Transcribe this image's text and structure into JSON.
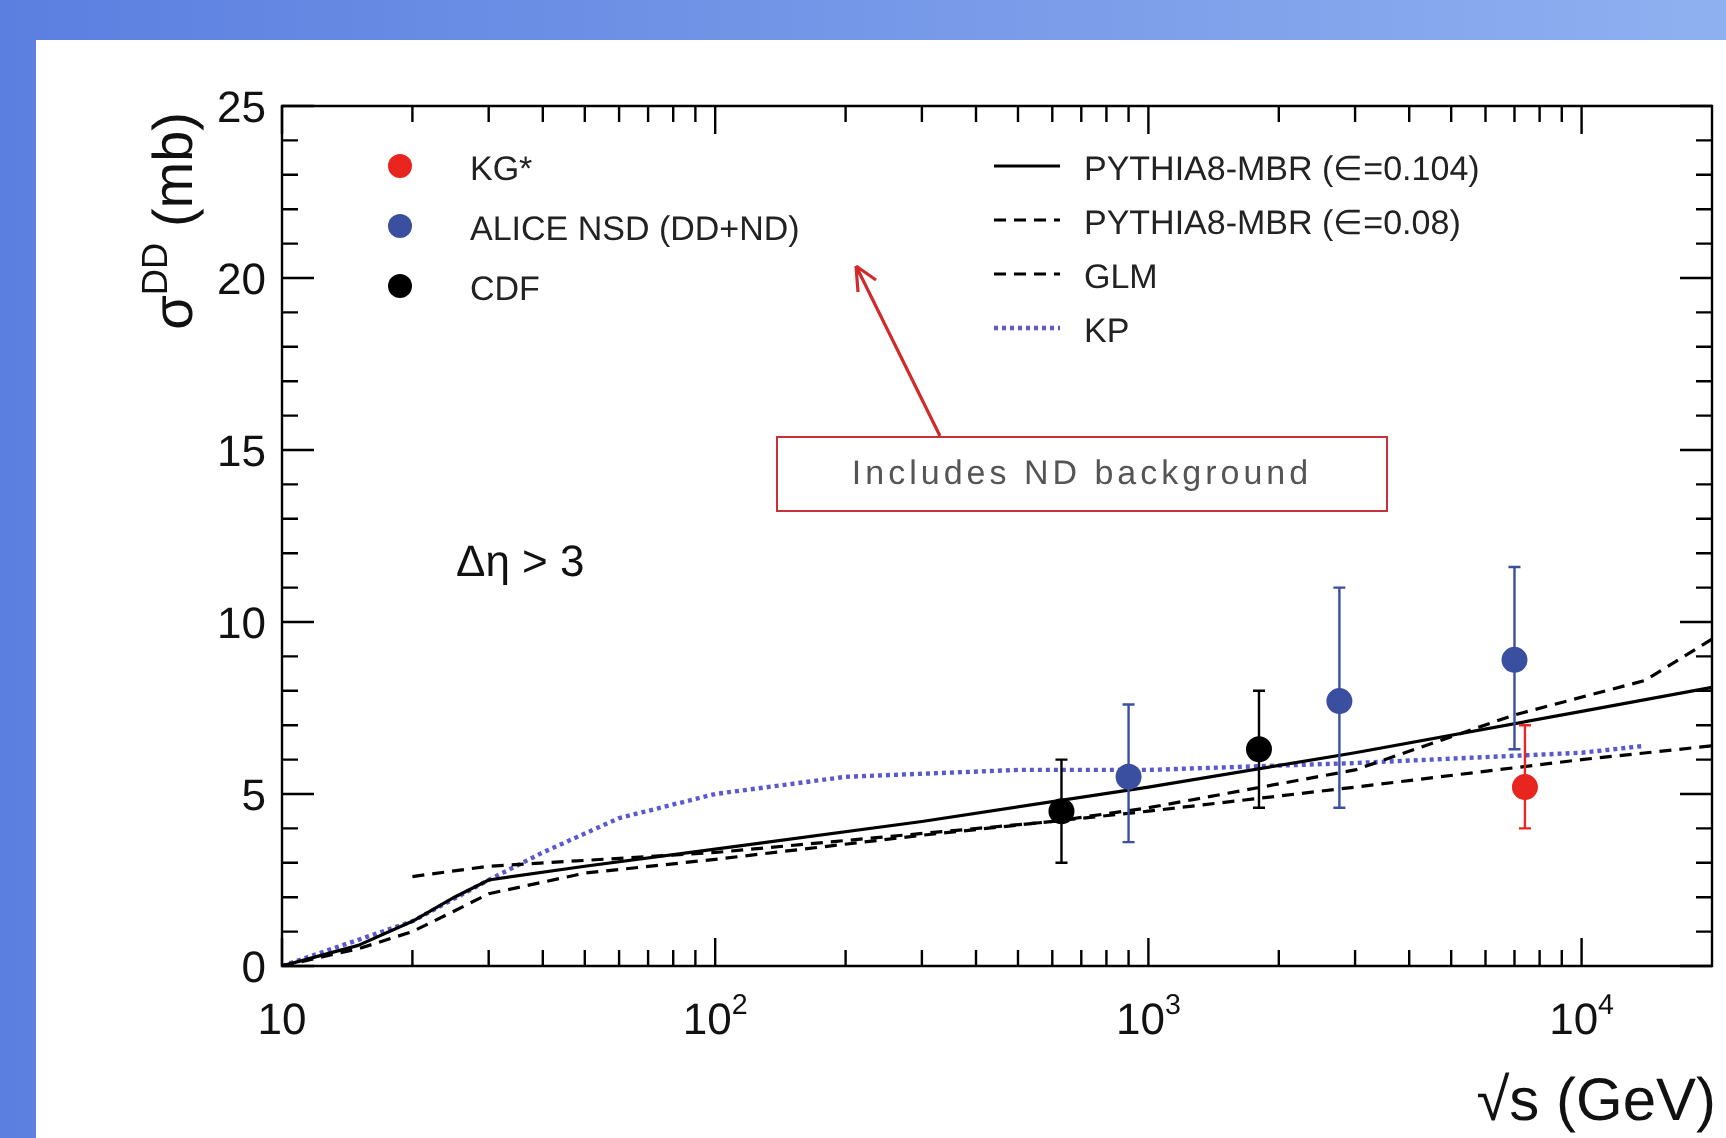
{
  "chart_data": {
    "type": "line",
    "xlabel": "√s (GeV)",
    "ylabel": "σ$^{DD}$ (mb)",
    "log": "x",
    "xlim": [
      10,
      20000
    ],
    "ylim": [
      0,
      25
    ],
    "xticks": [
      10,
      {
        "value": 20,
        "label": null
      },
      {
        "value": 30,
        "label": null
      },
      {
        "value": 40,
        "label": null
      },
      {
        "value": 50,
        "label": null
      },
      {
        "value": 60,
        "label": null
      },
      {
        "value": 70,
        "label": null
      },
      {
        "value": 80,
        "label": null
      },
      {
        "value": 90,
        "label": null
      },
      {
        "value": 100,
        "label": "10$^{2}$"
      },
      {
        "value": 200,
        "label": null
      },
      {
        "value": 300,
        "label": null
      },
      {
        "value": 400,
        "label": null
      },
      {
        "value": 500,
        "label": null
      },
      {
        "value": 600,
        "label": null
      },
      {
        "value": 700,
        "label": null
      },
      {
        "value": 800,
        "label": null
      },
      {
        "value": 900,
        "label": null
      },
      {
        "value": 1000,
        "label": "10$^{3}$"
      },
      {
        "value": 2000,
        "label": null
      },
      {
        "value": 3000,
        "label": null
      },
      {
        "value": 4000,
        "label": null
      },
      {
        "value": 5000,
        "label": null
      },
      {
        "value": 6000,
        "label": null
      },
      {
        "value": 7000,
        "label": null
      },
      {
        "value": 8000,
        "label": null
      },
      {
        "value": 9000,
        "label": null
      },
      {
        "value": 10000,
        "label": "10$^{4}$"
      }
    ],
    "yticks": [
      0,
      {
        "value": 1,
        "label": null
      },
      {
        "value": 2,
        "label": null
      },
      {
        "value": 3,
        "label": null
      },
      {
        "value": 4,
        "label": null
      },
      5,
      {
        "value": 6,
        "label": null
      },
      {
        "value": 7,
        "label": null
      },
      {
        "value": 8,
        "label": null
      },
      {
        "value": 9,
        "label": null
      },
      10,
      {
        "value": 11,
        "label": null
      },
      {
        "value": 12,
        "label": null
      },
      {
        "value": 13,
        "label": null
      },
      {
        "value": 14,
        "label": null
      },
      15,
      {
        "value": 16,
        "label": null
      },
      {
        "value": 17,
        "label": null
      },
      {
        "value": 18,
        "label": null
      },
      {
        "value": 19,
        "label": null
      },
      20,
      {
        "value": 21,
        "label": null
      },
      {
        "value": 22,
        "label": null
      },
      {
        "value": 23,
        "label": null
      },
      {
        "value": 24,
        "label": null
      },
      25
    ],
    "grid": false,
    "legend": "top",
    "annotations": [
      "Δη > 3",
      "Includes ND background"
    ],
    "series": [
      {
        "name": "KG*",
        "type": "scatter",
        "marker": "circle",
        "color": "#e8251f",
        "x": [
          7400
        ],
        "values": [
          5.2
        ],
        "errors": [
          [
            4.0,
            7.0
          ]
        ]
      },
      {
        "name": "ALICE NSD (DD+ND)",
        "type": "scatter",
        "marker": "circle",
        "color": "#3a4fa0",
        "x": [
          900,
          2760,
          7000
        ],
        "values": [
          5.5,
          7.7,
          8.9
        ],
        "errors": [
          [
            3.6,
            7.6
          ],
          [
            4.6,
            11.0
          ],
          [
            6.3,
            11.6
          ]
        ]
      },
      {
        "name": "CDF",
        "type": "scatter",
        "marker": "circle",
        "color": "#000000",
        "x": [
          630,
          1800
        ],
        "values": [
          4.5,
          6.3
        ],
        "errors": [
          [
            3.0,
            6.0
          ],
          [
            4.6,
            8.0
          ]
        ]
      },
      {
        "name": "PYTHIA8-MBR (∈=0.104)",
        "marker": "none",
        "line_style": "solid",
        "color": "#000000",
        "x": [
          10,
          15,
          20,
          25,
          30,
          50,
          100,
          300,
          1000,
          3000,
          10000,
          20000
        ],
        "values": [
          0,
          0.6,
          1.3,
          2.0,
          2.5,
          2.9,
          3.4,
          4.2,
          5.2,
          6.2,
          7.4,
          8.1
        ]
      },
      {
        "name": "PYTHIA8-MBR (∈=0.08)",
        "marker": "none",
        "line_style": "dashed",
        "color": "#000000",
        "x": [
          10,
          15,
          20,
          25,
          30,
          50,
          100,
          300,
          1000,
          3000,
          10000,
          20000
        ],
        "values": [
          0,
          0.5,
          1.0,
          1.6,
          2.1,
          2.7,
          3.1,
          3.8,
          4.5,
          5.2,
          6.0,
          6.4
        ]
      },
      {
        "name": "GLM",
        "marker": "none",
        "line_style": "dashed",
        "color": "#000000",
        "x": [
          20,
          30,
          100,
          600,
          1000,
          3000,
          7000,
          14000,
          20000
        ],
        "values": [
          2.6,
          2.9,
          3.3,
          4.2,
          4.6,
          5.7,
          7.3,
          8.3,
          9.5
        ]
      },
      {
        "name": "KP",
        "marker": "none",
        "line_style": "dotted",
        "color": "#5a5acd",
        "x": [
          10,
          20,
          30,
          40,
          60,
          100,
          200,
          500,
          1000,
          3000,
          10000,
          14000
        ],
        "values": [
          0,
          1.3,
          2.5,
          3.3,
          4.3,
          5.0,
          5.5,
          5.7,
          5.7,
          5.9,
          6.2,
          6.4
        ]
      }
    ]
  }
}
